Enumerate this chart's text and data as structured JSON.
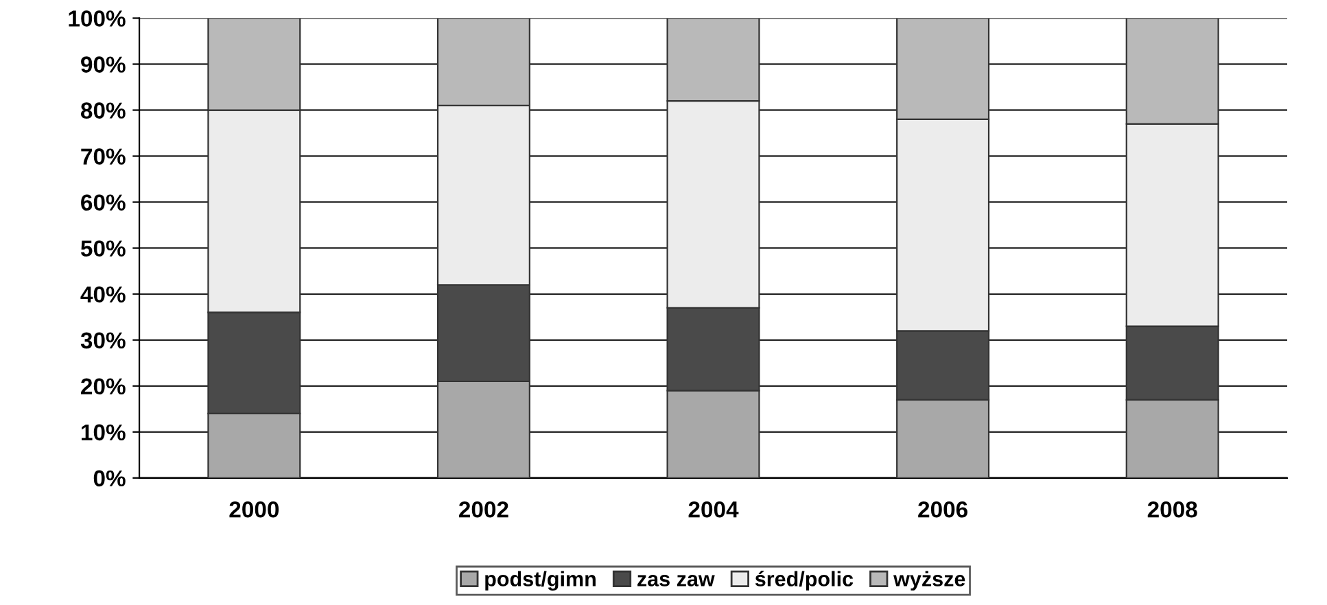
{
  "chart_data": {
    "type": "bar",
    "stacked": true,
    "categories": [
      "2000",
      "2002",
      "2004",
      "2006",
      "2008"
    ],
    "series": [
      {
        "name": "podst/gimn",
        "color": "#a8a8a8",
        "values": [
          14,
          21,
          19,
          17,
          17
        ]
      },
      {
        "name": "zas zaw",
        "color": "#4a4a4a",
        "values": [
          22,
          21,
          18,
          15,
          16
        ]
      },
      {
        "name": "śred/polic",
        "color": "#ececec",
        "values": [
          44,
          39,
          45,
          46,
          44
        ]
      },
      {
        "name": "wyższe",
        "color": "#b9b9b9",
        "values": [
          20,
          19,
          18,
          22,
          23
        ]
      }
    ],
    "ylim": [
      0,
      100
    ],
    "yticks": [
      {
        "value": 0,
        "label": "0%"
      },
      {
        "value": 10,
        "label": "10%"
      },
      {
        "value": 20,
        "label": "20%"
      },
      {
        "value": 30,
        "label": "30%"
      },
      {
        "value": 40,
        "label": "40%"
      },
      {
        "value": 50,
        "label": "50%"
      },
      {
        "value": 60,
        "label": "60%"
      },
      {
        "value": 70,
        "label": "70%"
      },
      {
        "value": 80,
        "label": "80%"
      },
      {
        "value": 90,
        "label": "90%"
      },
      {
        "value": 100,
        "label": "100%"
      }
    ],
    "grid": "y",
    "legend": "bottom"
  }
}
